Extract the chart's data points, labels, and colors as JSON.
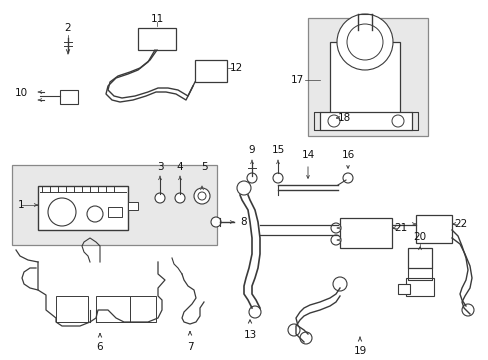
{
  "bg_color": "#ffffff",
  "line_color": "#3a3a3a",
  "text_color": "#111111",
  "box_face": "#e8e8e8",
  "fig_width": 4.89,
  "fig_height": 3.6,
  "dpi": 100
}
